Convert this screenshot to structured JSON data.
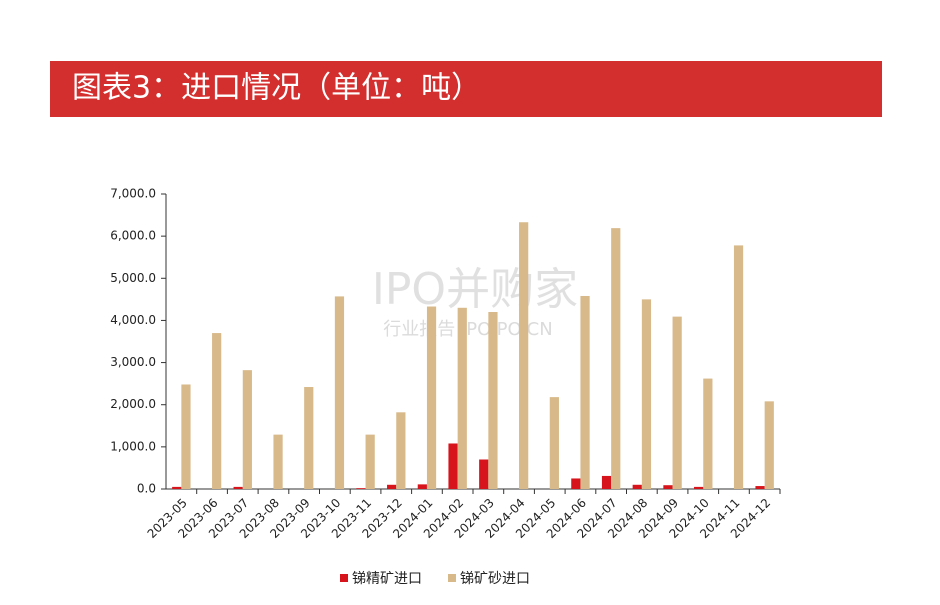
{
  "header": {
    "title": "图表3：进口情况（单位：吨）"
  },
  "watermark": {
    "main": "IPO并购家",
    "sub": "行业报告 IPOIPO.CN"
  },
  "chart_data": {
    "type": "bar",
    "categories": [
      "2023-05",
      "2023-06",
      "2023-07",
      "2023-08",
      "2023-09",
      "2023-10",
      "2023-11",
      "2023-12",
      "2024-01",
      "2024-02",
      "2024-03",
      "2024-04",
      "2024-05",
      "2024-06",
      "2024-07",
      "2024-08",
      "2024-09",
      "2024-10",
      "2024-11",
      "2024-12"
    ],
    "series": [
      {
        "name": "锑精矿进口",
        "color": "#d7141c",
        "values": [
          50,
          0,
          50,
          0,
          0,
          0,
          20,
          100,
          110,
          1080,
          700,
          0,
          0,
          250,
          310,
          100,
          90,
          50,
          0,
          70
        ]
      },
      {
        "name": "锑矿砂进口",
        "color": "#d8b98a",
        "values": [
          2480,
          3700,
          2820,
          1290,
          2420,
          4570,
          1290,
          1820,
          4330,
          4300,
          4200,
          6330,
          2180,
          4580,
          6190,
          4500,
          4090,
          2620,
          5780,
          2080
        ]
      }
    ],
    "ylim": [
      0,
      7000
    ],
    "yticks": [
      {
        "value": 0,
        "label": "0.0"
      },
      {
        "value": 1000,
        "label": "1,000.0"
      },
      {
        "value": 2000,
        "label": "2,000.0"
      },
      {
        "value": 3000,
        "label": "3,000.0"
      },
      {
        "value": 4000,
        "label": "4,000.0"
      },
      {
        "value": 5000,
        "label": "5,000.0"
      },
      {
        "value": 6000,
        "label": "6,000.0"
      },
      {
        "value": 7000,
        "label": "7,000.0"
      }
    ],
    "grid": false,
    "legend": "bottom"
  }
}
